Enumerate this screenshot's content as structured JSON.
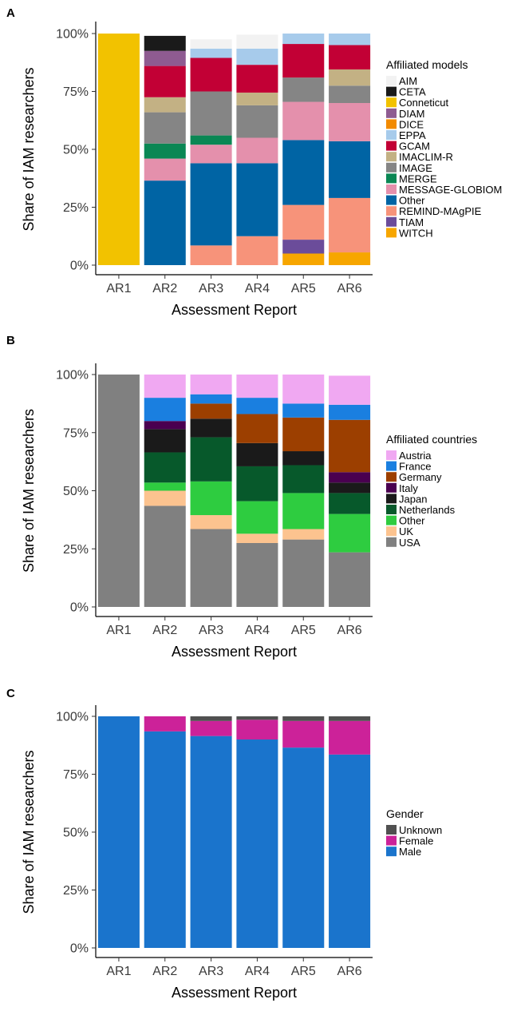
{
  "chart_data": [
    {
      "panel": "A",
      "type": "bar",
      "stacked": true,
      "xlabel": "Assessment Report",
      "ylabel": "Share of IAM researchers",
      "ylim": [
        0,
        1
      ],
      "yticks": [
        "0%",
        "25%",
        "50%",
        "75%",
        "100%"
      ],
      "categories": [
        "AR1",
        "AR2",
        "AR3",
        "AR4",
        "AR5",
        "AR6"
      ],
      "legend_title": "Affiliated models",
      "legend_position": "right",
      "series": [
        {
          "name": "AIM",
          "color": "#f2f2f2",
          "values": [
            0,
            0,
            0.04,
            0.06,
            0,
            0
          ]
        },
        {
          "name": "CETA",
          "color": "#1a1a1a",
          "values": [
            0,
            0.065,
            0,
            0,
            0,
            0
          ]
        },
        {
          "name": "Conneticut",
          "color": "#f2c200",
          "values": [
            1.0,
            0,
            0,
            0,
            0,
            0
          ]
        },
        {
          "name": "DIAM",
          "color": "#8e5b91",
          "values": [
            0,
            0.065,
            0,
            0,
            0,
            0
          ]
        },
        {
          "name": "DICE",
          "color": "#f28a00",
          "values": [
            0,
            0,
            0,
            0,
            0,
            0
          ]
        },
        {
          "name": "EPPA",
          "color": "#a7cbeb",
          "values": [
            0,
            0,
            0.04,
            0.07,
            0.045,
            0.055
          ]
        },
        {
          "name": "GCAM",
          "color": "#c20035",
          "values": [
            0,
            0.135,
            0.145,
            0.12,
            0.145,
            0.105
          ]
        },
        {
          "name": "IMACLIM-R",
          "color": "#c3b184",
          "values": [
            0,
            0.065,
            0,
            0.055,
            0,
            0.07
          ]
        },
        {
          "name": "IMAGE",
          "color": "#858585",
          "values": [
            0,
            0.135,
            0.19,
            0.14,
            0.105,
            0.075
          ]
        },
        {
          "name": "MERGE",
          "color": "#0a8754",
          "values": [
            0,
            0.065,
            0.04,
            0,
            0,
            0
          ]
        },
        {
          "name": "MESSAGE-GLOBIOM",
          "color": "#e490ac",
          "values": [
            0,
            0.095,
            0.08,
            0.11,
            0.165,
            0.165
          ]
        },
        {
          "name": "Other",
          "color": "#0064a4",
          "values": [
            0.0,
            0.365,
            0.355,
            0.315,
            0.28,
            0.245
          ]
        },
        {
          "name": "REMIND-MAgPIE",
          "color": "#f7937a",
          "values": [
            0,
            0,
            0.085,
            0.125,
            0.15,
            0.235
          ]
        },
        {
          "name": "TIAM",
          "color": "#6b4c9a",
          "values": [
            0,
            0,
            0,
            0,
            0.06,
            0
          ]
        },
        {
          "name": "WITCH",
          "color": "#f7a600",
          "values": [
            0,
            0,
            0,
            0,
            0.05,
            0.055
          ]
        }
      ]
    },
    {
      "panel": "B",
      "type": "bar",
      "stacked": true,
      "xlabel": "Assessment Report",
      "ylabel": "Share of IAM researchers",
      "ylim": [
        0,
        1
      ],
      "yticks": [
        "0%",
        "25%",
        "50%",
        "75%",
        "100%"
      ],
      "categories": [
        "AR1",
        "AR2",
        "AR3",
        "AR4",
        "AR5",
        "AR6"
      ],
      "legend_title": "Affiliated countries",
      "legend_position": "right",
      "series": [
        {
          "name": "Austria",
          "color": "#f0a8f2",
          "values": [
            0,
            0.1,
            0.085,
            0.1,
            0.125,
            0.125
          ]
        },
        {
          "name": "France",
          "color": "#1a7fe0",
          "values": [
            0,
            0.1,
            0.04,
            0.07,
            0.06,
            0.065
          ]
        },
        {
          "name": "Germany",
          "color": "#9c3f00",
          "values": [
            0,
            0,
            0.065,
            0.125,
            0.145,
            0.225
          ]
        },
        {
          "name": "Italy",
          "color": "#4a0050",
          "values": [
            0,
            0.035,
            0,
            0,
            0,
            0.045
          ]
        },
        {
          "name": "Japan",
          "color": "#1a1a1a",
          "values": [
            0,
            0.1,
            0.08,
            0.1,
            0.06,
            0.045
          ]
        },
        {
          "name": "Netherlands",
          "color": "#07592b",
          "values": [
            0,
            0.13,
            0.19,
            0.15,
            0.12,
            0.09
          ]
        },
        {
          "name": "Other",
          "color": "#2ecc40",
          "values": [
            0,
            0.035,
            0.145,
            0.14,
            0.155,
            0.165
          ]
        },
        {
          "name": "UK",
          "color": "#fcc38f",
          "values": [
            0,
            0.065,
            0.06,
            0.04,
            0.045,
            0
          ]
        },
        {
          "name": "USA",
          "color": "#808080",
          "values": [
            1.0,
            0.435,
            0.335,
            0.275,
            0.29,
            0.235
          ]
        }
      ]
    },
    {
      "panel": "C",
      "type": "bar",
      "stacked": true,
      "xlabel": "Assessment Report",
      "ylabel": "Share of IAM researchers",
      "ylim": [
        0,
        1
      ],
      "yticks": [
        "0%",
        "25%",
        "50%",
        "75%",
        "100%"
      ],
      "categories": [
        "AR1",
        "AR2",
        "AR3",
        "AR4",
        "AR5",
        "AR6"
      ],
      "legend_title": "Gender",
      "legend_position": "right",
      "series": [
        {
          "name": "Unknown",
          "color": "#505050",
          "values": [
            0,
            0,
            0.02,
            0.015,
            0.02,
            0.02
          ]
        },
        {
          "name": "Female",
          "color": "#cc2299",
          "values": [
            0,
            0.065,
            0.065,
            0.085,
            0.115,
            0.145
          ]
        },
        {
          "name": "Male",
          "color": "#1a74cc",
          "values": [
            1.0,
            0.935,
            0.915,
            0.9,
            0.865,
            0.835
          ]
        }
      ]
    }
  ]
}
